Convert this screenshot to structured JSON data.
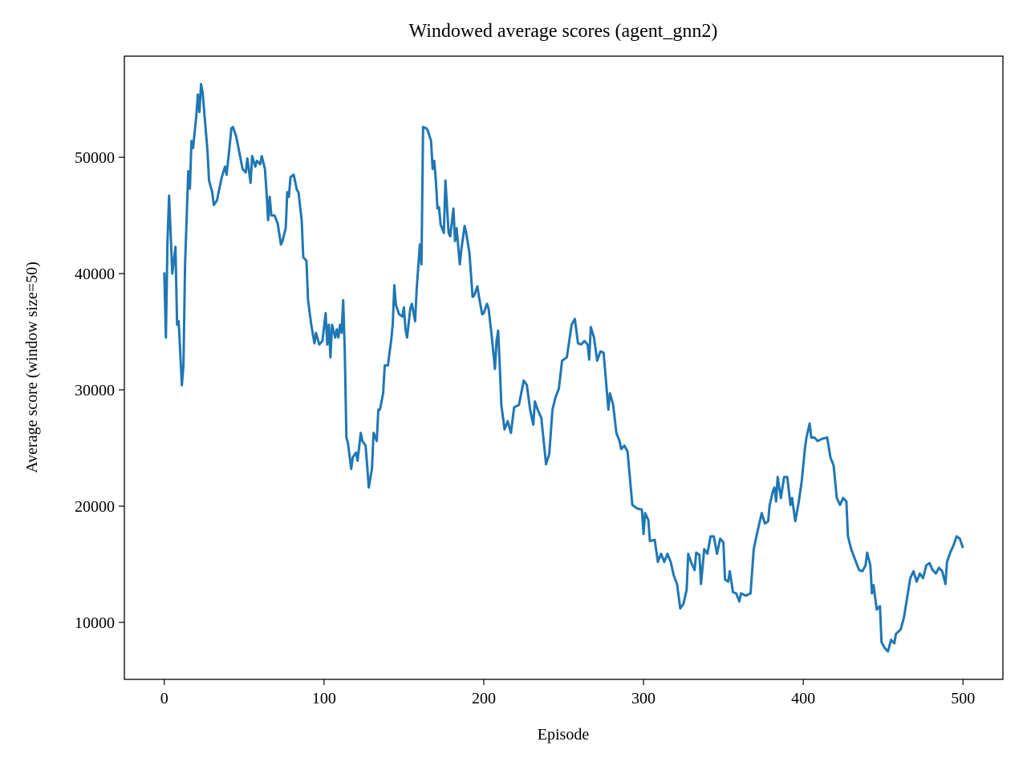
{
  "chart_data": {
    "type": "line",
    "title": "Windowed average scores (agent_gnn2)",
    "x_label": "Episode",
    "y_label": "Average score (window size=50)",
    "color": "#1f77b4",
    "xlim": [
      -25,
      525
    ],
    "ylim": [
      5100,
      58700
    ],
    "xticks": [
      0,
      100,
      200,
      300,
      400,
      500
    ],
    "yticks": [
      10000,
      20000,
      30000,
      40000,
      50000
    ],
    "x": [
      0,
      1,
      2,
      3,
      5,
      7,
      8,
      9,
      11,
      12,
      13,
      15,
      16,
      17,
      18,
      20,
      21,
      22,
      23,
      24,
      25,
      27,
      28,
      30,
      31,
      33,
      34,
      36,
      38,
      39,
      41,
      42,
      43,
      45,
      47,
      49,
      51,
      52,
      54,
      55,
      57,
      58,
      60,
      61,
      63,
      64,
      65,
      66,
      67,
      69,
      71,
      73,
      74,
      76,
      77,
      78,
      79,
      81,
      83,
      84,
      86,
      87,
      89,
      90,
      92,
      94,
      95,
      97,
      99,
      101,
      102,
      103,
      104,
      105,
      107,
      108,
      109,
      110,
      111,
      112,
      113,
      114,
      115,
      117,
      118,
      120,
      121,
      123,
      124,
      126,
      127,
      128,
      130,
      131,
      133,
      134,
      135,
      137,
      138,
      140,
      141,
      142,
      143,
      144,
      145,
      147,
      149,
      150,
      151,
      152,
      154,
      155,
      157,
      158,
      160,
      161,
      162,
      164,
      165,
      167,
      168,
      169,
      170,
      171,
      172,
      173,
      175,
      176,
      178,
      179,
      181,
      182,
      183,
      185,
      186,
      188,
      189,
      191,
      193,
      194,
      196,
      197,
      199,
      200,
      202,
      203,
      205,
      207,
      208,
      209,
      210,
      211,
      213,
      215,
      217,
      219,
      222,
      225,
      227,
      229,
      231,
      232,
      234,
      236,
      239,
      241,
      243,
      245,
      247,
      249,
      252,
      255,
      257,
      259,
      261,
      263,
      265,
      266,
      267,
      269,
      271,
      273,
      275,
      276,
      278,
      279,
      281,
      283,
      285,
      286,
      288,
      290,
      293,
      296,
      299,
      300,
      301,
      303,
      304,
      307,
      309,
      311,
      313,
      315,
      317,
      319,
      321,
      323,
      325,
      327,
      328,
      330,
      332,
      333,
      335,
      336,
      338,
      340,
      342,
      344,
      346,
      348,
      350,
      351,
      353,
      354,
      356,
      358,
      360,
      361,
      364,
      367,
      369,
      371,
      374,
      376,
      378,
      379,
      381,
      382,
      383,
      384,
      386,
      388,
      390,
      392,
      393,
      395,
      397,
      399,
      401,
      402,
      404,
      405,
      407,
      409,
      412,
      415,
      417,
      419,
      421,
      423,
      425,
      427,
      428,
      430,
      433,
      435,
      437,
      439,
      440,
      442,
      443,
      444,
      446,
      448,
      449,
      451,
      453,
      455,
      457,
      458,
      461,
      463,
      465,
      467,
      469,
      471,
      473,
      475,
      477,
      479,
      481,
      483,
      485,
      487,
      489,
      490,
      492,
      494,
      496,
      498,
      500
    ],
    "values": [
      40100,
      34500,
      42800,
      46700,
      40000,
      42300,
      35600,
      35900,
      30400,
      32100,
      40800,
      48800,
      47300,
      51400,
      50800,
      53500,
      55400,
      53900,
      56300,
      55600,
      53900,
      50600,
      48000,
      47000,
      45900,
      46300,
      47000,
      48300,
      49200,
      48500,
      51100,
      52500,
      52600,
      51800,
      50400,
      49000,
      48700,
      49900,
      47800,
      50100,
      49200,
      49700,
      49400,
      50100,
      49000,
      47000,
      44600,
      46600,
      45000,
      45000,
      44300,
      42500,
      42800,
      43900,
      47000,
      46600,
      48300,
      48500,
      47200,
      47000,
      44600,
      41400,
      41100,
      37700,
      35600,
      34000,
      34900,
      33900,
      34200,
      36600,
      33900,
      35600,
      32800,
      35600,
      34500,
      35200,
      34500,
      35600,
      34900,
      37700,
      33200,
      25900,
      25400,
      23200,
      24200,
      24600,
      23900,
      26300,
      25600,
      25200,
      23500,
      21600,
      23200,
      26300,
      25600,
      28300,
      28300,
      29700,
      32100,
      32100,
      33200,
      34200,
      35600,
      39000,
      37300,
      36500,
      36300,
      37100,
      35200,
      34500,
      37000,
      37400,
      35900,
      38700,
      42500,
      40800,
      52600,
      52500,
      52300,
      51400,
      49000,
      49700,
      48000,
      45600,
      45700,
      44200,
      43500,
      48000,
      43500,
      43200,
      45600,
      42800,
      43900,
      40800,
      42100,
      44100,
      43500,
      41800,
      38000,
      38100,
      38900,
      38000,
      36500,
      36600,
      37400,
      37000,
      34600,
      31800,
      34200,
      35100,
      32100,
      28700,
      26600,
      27300,
      26300,
      28500,
      28700,
      30800,
      30400,
      28300,
      27000,
      29000,
      28200,
      27600,
      23600,
      24500,
      28300,
      29400,
      30100,
      32500,
      32800,
      35600,
      36100,
      34000,
      33900,
      34200,
      33900,
      32600,
      35400,
      34500,
      32500,
      33300,
      33200,
      31600,
      28300,
      29700,
      28700,
      26300,
      25600,
      24900,
      25200,
      24700,
      20100,
      19800,
      19700,
      17600,
      19400,
      18800,
      17000,
      17100,
      15200,
      15900,
      15200,
      15900,
      15200,
      14000,
      13300,
      11200,
      11600,
      12800,
      15900,
      15100,
      14500,
      16000,
      15800,
      13300,
      16300,
      15900,
      17400,
      17400,
      15900,
      17200,
      16900,
      13700,
      13500,
      14400,
      12600,
      12500,
      11800,
      12500,
      12300,
      12500,
      16300,
      17600,
      19400,
      18500,
      18700,
      20100,
      21300,
      21600,
      20400,
      22500,
      20700,
      22500,
      22500,
      20100,
      20700,
      18700,
      20200,
      22100,
      24900,
      25900,
      27100,
      25900,
      25900,
      25600,
      25800,
      25900,
      24200,
      23500,
      20700,
      20100,
      20700,
      20400,
      17400,
      16300,
      15200,
      14500,
      14400,
      14900,
      16000,
      14900,
      12500,
      13200,
      11100,
      11400,
      8300,
      7800,
      7500,
      8500,
      8200,
      9000,
      9400,
      10400,
      12100,
      13800,
      14400,
      13500,
      14200,
      13800,
      14900,
      15100,
      14500,
      14200,
      14700,
      14400,
      13300,
      15200,
      16000,
      16600,
      17400,
      17200,
      16400
    ]
  }
}
